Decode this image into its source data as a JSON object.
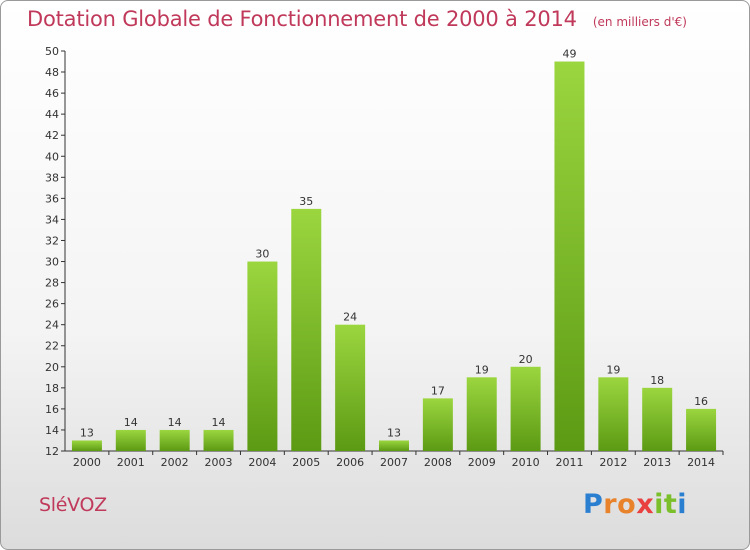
{
  "title": "Dotation Globale de Fonctionnement de 2000 à 2014",
  "unit_note": "(en milliers d'€)",
  "commune": "SléVOZ",
  "logo": {
    "text": "Proxiti",
    "letter_colors": [
      "#2a7fd0",
      "#e8822b",
      "#e8822b",
      "#e94040",
      "#7bbf2a",
      "#7bbf2a",
      "#2a7fd0"
    ]
  },
  "colors": {
    "bar_top": "#9bd63f",
    "bar_bottom": "#5c9a14",
    "title": "#c0395a"
  },
  "chart_data": {
    "type": "bar",
    "title": "Dotation Globale de Fonctionnement de 2000 à 2014",
    "subtitle": "(en milliers d'€)",
    "xlabel": "",
    "ylabel": "",
    "categories": [
      "2000",
      "2001",
      "2002",
      "2003",
      "2004",
      "2005",
      "2006",
      "2007",
      "2008",
      "2009",
      "2010",
      "2011",
      "2012",
      "2013",
      "2014"
    ],
    "values": [
      13,
      14,
      14,
      14,
      30,
      35,
      24,
      13,
      17,
      19,
      20,
      49,
      19,
      18,
      16
    ],
    "ylim": [
      12,
      50
    ],
    "ytick_step": 2,
    "grid": false
  }
}
